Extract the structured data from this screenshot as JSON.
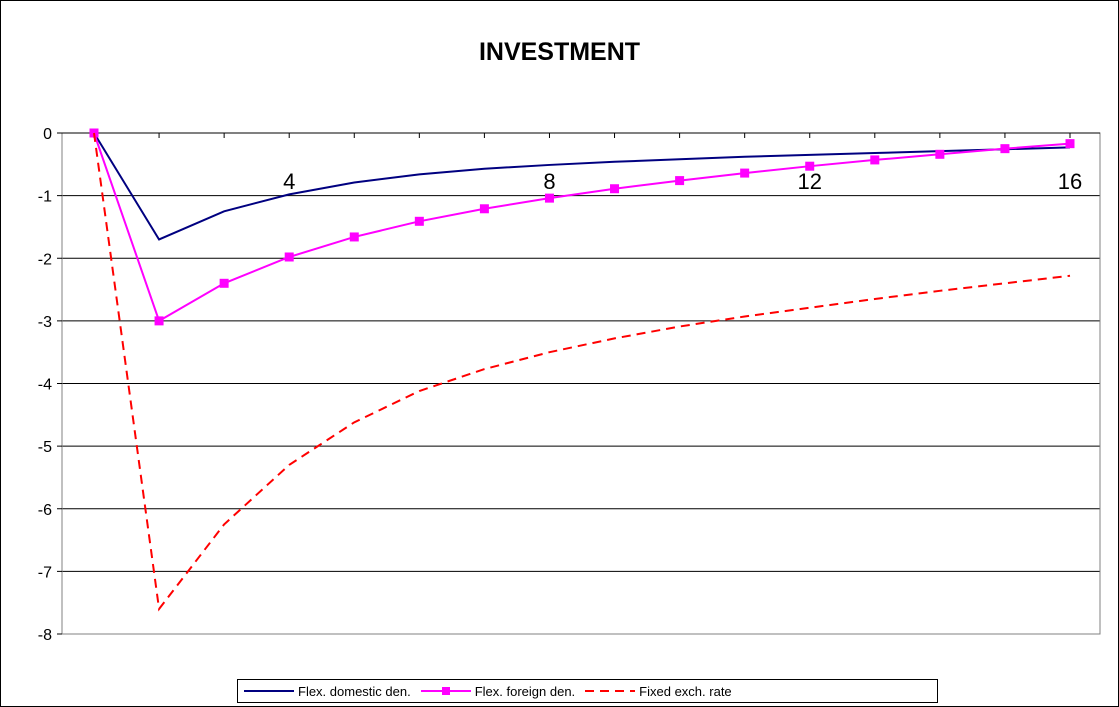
{
  "chart_data": {
    "type": "line",
    "title": "INVESTMENT",
    "xlabel": "",
    "ylabel": "",
    "x": [
      0,
      1,
      2,
      3,
      4,
      5,
      6,
      7,
      8,
      9,
      10,
      11,
      12,
      13,
      14,
      15
    ],
    "x_tick_labels": [
      {
        "x": 3,
        "label": "4"
      },
      {
        "x": 7,
        "label": "8"
      },
      {
        "x": 11,
        "label": "12"
      },
      {
        "x": 15,
        "label": "16"
      }
    ],
    "ylim": [
      -8,
      0
    ],
    "yticks": [
      0,
      -1,
      -2,
      -3,
      -4,
      -5,
      -6,
      -7,
      -8
    ],
    "grid": true,
    "legend_position": "bottom",
    "series": [
      {
        "name": "Flex. domestic den.",
        "color": "#000080",
        "style": "solid",
        "marker": "none",
        "values": [
          0,
          -1.7,
          -1.25,
          -0.98,
          -0.79,
          -0.66,
          -0.57,
          -0.51,
          -0.46,
          -0.42,
          -0.38,
          -0.35,
          -0.32,
          -0.29,
          -0.26,
          -0.23
        ]
      },
      {
        "name": "Flex. foreign den.",
        "color": "#ff00ff",
        "style": "solid",
        "marker": "square",
        "values": [
          0,
          -3.0,
          -2.4,
          -1.98,
          -1.66,
          -1.41,
          -1.21,
          -1.04,
          -0.89,
          -0.76,
          -0.64,
          -0.53,
          -0.43,
          -0.34,
          -0.25,
          -0.17
        ]
      },
      {
        "name": "Fixed exch. rate",
        "color": "#ff0000",
        "style": "dashed",
        "marker": "none",
        "values": [
          0,
          -7.6,
          -6.25,
          -5.3,
          -4.62,
          -4.12,
          -3.77,
          -3.5,
          -3.28,
          -3.09,
          -2.93,
          -2.79,
          -2.65,
          -2.52,
          -2.4,
          -2.28
        ]
      }
    ]
  }
}
